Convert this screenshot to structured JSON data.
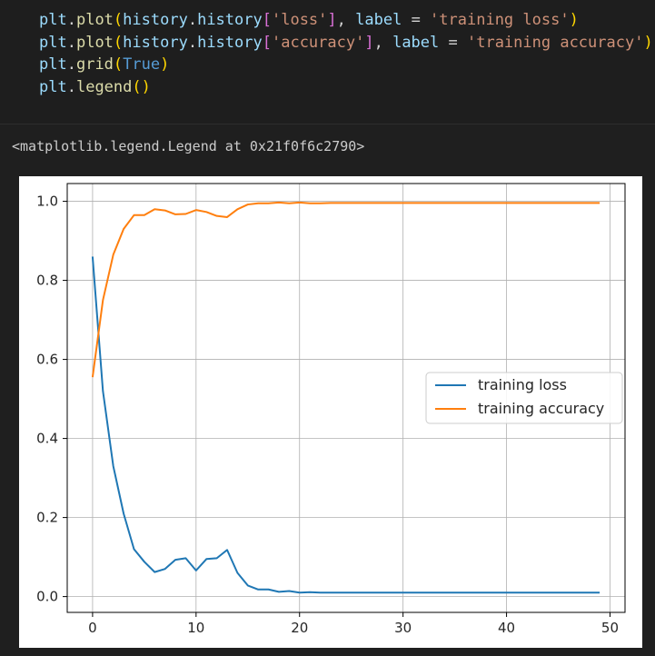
{
  "code": {
    "lines": [
      [
        {
          "t": "plt",
          "c": "var"
        },
        {
          "t": ".",
          "c": "plain"
        },
        {
          "t": "plot",
          "c": "fn"
        },
        {
          "t": "(",
          "c": "brk1"
        },
        {
          "t": "history",
          "c": "var"
        },
        {
          "t": ".",
          "c": "plain"
        },
        {
          "t": "history",
          "c": "var"
        },
        {
          "t": "[",
          "c": "brk2"
        },
        {
          "t": "'loss'",
          "c": "str"
        },
        {
          "t": "]",
          "c": "brk2"
        },
        {
          "t": ", ",
          "c": "plain"
        },
        {
          "t": "label",
          "c": "var"
        },
        {
          "t": " = ",
          "c": "plain"
        },
        {
          "t": "'training loss'",
          "c": "str"
        },
        {
          "t": ")",
          "c": "brk1"
        }
      ],
      [
        {
          "t": "plt",
          "c": "var"
        },
        {
          "t": ".",
          "c": "plain"
        },
        {
          "t": "plot",
          "c": "fn"
        },
        {
          "t": "(",
          "c": "brk1"
        },
        {
          "t": "history",
          "c": "var"
        },
        {
          "t": ".",
          "c": "plain"
        },
        {
          "t": "history",
          "c": "var"
        },
        {
          "t": "[",
          "c": "brk2"
        },
        {
          "t": "'accuracy'",
          "c": "str"
        },
        {
          "t": "]",
          "c": "brk2"
        },
        {
          "t": ", ",
          "c": "plain"
        },
        {
          "t": "label",
          "c": "var"
        },
        {
          "t": " = ",
          "c": "plain"
        },
        {
          "t": "'training accuracy'",
          "c": "str"
        },
        {
          "t": ")",
          "c": "brk1"
        }
      ],
      [
        {
          "t": "plt",
          "c": "var"
        },
        {
          "t": ".",
          "c": "plain"
        },
        {
          "t": "grid",
          "c": "fn"
        },
        {
          "t": "(",
          "c": "brk1"
        },
        {
          "t": "True",
          "c": "kw"
        },
        {
          "t": ")",
          "c": "brk1"
        }
      ],
      [
        {
          "t": "plt",
          "c": "var"
        },
        {
          "t": ".",
          "c": "plain"
        },
        {
          "t": "legend",
          "c": "fn"
        },
        {
          "t": "()",
          "c": "brk1"
        }
      ]
    ]
  },
  "output": {
    "text": "<matplotlib.legend.Legend at 0x21f0f6c2790>"
  },
  "chart_data": {
    "type": "line",
    "title": "",
    "xlabel": "",
    "ylabel": "",
    "xlim": [
      -2.45,
      51.45
    ],
    "ylim": [
      -0.04,
      1.045
    ],
    "xticks": [
      0,
      10,
      20,
      30,
      40,
      50
    ],
    "yticks": [
      0.0,
      0.2,
      0.4,
      0.6,
      0.8,
      1.0
    ],
    "xtick_labels": [
      "0",
      "10",
      "20",
      "30",
      "40",
      "50"
    ],
    "ytick_labels": [
      "0.0",
      "0.2",
      "0.4",
      "0.6",
      "0.8",
      "1.0"
    ],
    "grid": true,
    "legend_position": "center-right",
    "series": [
      {
        "name": "training loss",
        "color": "#1f77b4",
        "x": [
          0,
          1,
          2,
          3,
          4,
          5,
          6,
          7,
          8,
          9,
          10,
          11,
          12,
          13,
          14,
          15,
          16,
          17,
          18,
          19,
          20,
          21,
          22,
          23,
          24,
          25,
          26,
          27,
          28,
          29,
          30,
          31,
          32,
          33,
          34,
          35,
          36,
          37,
          38,
          39,
          40,
          41,
          42,
          43,
          44,
          45,
          46,
          47,
          48,
          49
        ],
        "values": [
          0.86,
          0.52,
          0.33,
          0.21,
          0.12,
          0.088,
          0.062,
          0.07,
          0.093,
          0.097,
          0.066,
          0.095,
          0.097,
          0.118,
          0.06,
          0.028,
          0.018,
          0.018,
          0.012,
          0.014,
          0.01,
          0.011,
          0.01,
          0.01,
          0.01,
          0.01,
          0.01,
          0.01,
          0.01,
          0.01,
          0.01,
          0.01,
          0.01,
          0.01,
          0.01,
          0.01,
          0.01,
          0.01,
          0.01,
          0.01,
          0.01,
          0.01,
          0.01,
          0.01,
          0.01,
          0.01,
          0.01,
          0.01,
          0.01,
          0.01
        ]
      },
      {
        "name": "training accuracy",
        "color": "#ff7f0e",
        "x": [
          0,
          1,
          2,
          3,
          4,
          5,
          6,
          7,
          8,
          9,
          10,
          11,
          12,
          13,
          14,
          15,
          16,
          17,
          18,
          19,
          20,
          21,
          22,
          23,
          24,
          25,
          26,
          27,
          28,
          29,
          30,
          31,
          32,
          33,
          34,
          35,
          36,
          37,
          38,
          39,
          40,
          41,
          42,
          43,
          44,
          45,
          46,
          47,
          48,
          49
        ],
        "values": [
          0.555,
          0.75,
          0.865,
          0.93,
          0.965,
          0.965,
          0.98,
          0.977,
          0.967,
          0.968,
          0.978,
          0.973,
          0.963,
          0.96,
          0.98,
          0.992,
          0.995,
          0.995,
          0.997,
          0.995,
          0.997,
          0.995,
          0.995,
          0.996,
          0.996,
          0.996,
          0.996,
          0.996,
          0.996,
          0.996,
          0.996,
          0.996,
          0.996,
          0.996,
          0.996,
          0.996,
          0.996,
          0.996,
          0.996,
          0.996,
          0.996,
          0.996,
          0.996,
          0.996,
          0.996,
          0.996,
          0.996,
          0.996,
          0.996,
          0.996
        ]
      }
    ]
  }
}
